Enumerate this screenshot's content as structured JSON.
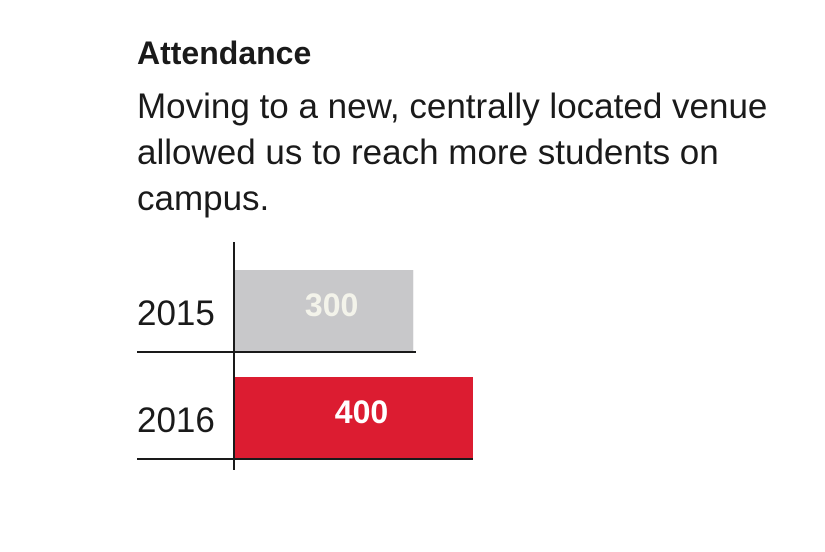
{
  "colors": {
    "bar_2015": "#c8c8ca",
    "bar_2016": "#dc1c31",
    "label_2015": "#f3f3ea",
    "label_2016": "#ffffff",
    "axis": "#1a1a1a"
  },
  "chart_data": {
    "type": "bar",
    "orientation": "horizontal",
    "title": "Attendance",
    "subtitle": "Moving to a new, centrally located venue allowed us to reach more students on campus.",
    "categories": [
      "2015",
      "2016"
    ],
    "values": [
      300,
      400
    ],
    "data_labels": [
      "300",
      "400"
    ],
    "xlabel": "",
    "ylabel": "",
    "xlim": [
      0,
      400
    ],
    "grid": false
  }
}
